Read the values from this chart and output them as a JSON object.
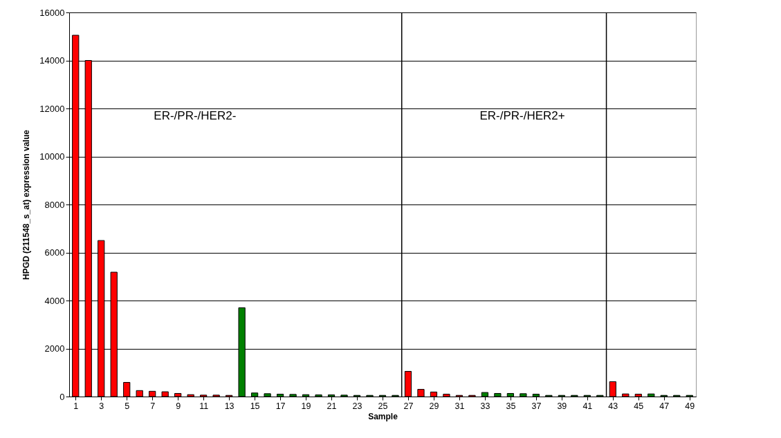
{
  "chart_data": {
    "type": "bar",
    "xlabel": "Sample",
    "ylabel": "HPGD (211548_s_at) expression value",
    "x": [
      1,
      2,
      3,
      4,
      5,
      6,
      7,
      8,
      9,
      10,
      11,
      12,
      13,
      14,
      15,
      16,
      17,
      18,
      19,
      20,
      21,
      22,
      23,
      24,
      25,
      26,
      27,
      28,
      29,
      30,
      31,
      32,
      33,
      34,
      35,
      36,
      37,
      38,
      39,
      40,
      41,
      42,
      43,
      44,
      45,
      46,
      47,
      48,
      49
    ],
    "values": [
      15050,
      14000,
      6500,
      5180,
      590,
      250,
      220,
      200,
      130,
      80,
      60,
      60,
      50,
      3700,
      150,
      120,
      100,
      90,
      80,
      70,
      70,
      60,
      50,
      50,
      50,
      50,
      1050,
      300,
      190,
      100,
      50,
      50,
      170,
      130,
      130,
      120,
      100,
      50,
      50,
      50,
      50,
      50,
      620,
      110,
      100,
      110,
      50,
      50,
      50
    ],
    "colors": [
      "#ff0000",
      "#ff0000",
      "#ff0000",
      "#ff0000",
      "#ff0000",
      "#ff0000",
      "#ff0000",
      "#ff0000",
      "#ff0000",
      "#ff0000",
      "#ff0000",
      "#ff0000",
      "#ff0000",
      "#008000",
      "#008000",
      "#008000",
      "#008000",
      "#008000",
      "#008000",
      "#008000",
      "#008000",
      "#008000",
      "#008000",
      "#008000",
      "#008000",
      "#008000",
      "#ff0000",
      "#ff0000",
      "#ff0000",
      "#ff0000",
      "#ff0000",
      "#ff0000",
      "#008000",
      "#008000",
      "#008000",
      "#008000",
      "#008000",
      "#008000",
      "#008000",
      "#008000",
      "#008000",
      "#008000",
      "#ff0000",
      "#ff0000",
      "#ff0000",
      "#008000",
      "#008000",
      "#008000",
      "#008000"
    ],
    "xlim": [
      0.5,
      49.5
    ],
    "xticks": [
      1,
      3,
      5,
      7,
      9,
      11,
      13,
      15,
      17,
      19,
      21,
      23,
      25,
      27,
      29,
      31,
      33,
      35,
      37,
      39,
      41,
      43,
      45,
      47,
      49
    ],
    "ylim": [
      0,
      16000
    ],
    "yticks": [
      0,
      2000,
      4000,
      6000,
      8000,
      10000,
      12000,
      14000,
      16000
    ],
    "grid": "y",
    "ref_lines": [
      {
        "axis": "x",
        "value": 26.5,
        "color": "#000000"
      },
      {
        "axis": "x",
        "value": 42.5,
        "color": "#000000"
      }
    ],
    "annotations": [
      "ER-/PR-/HER2-",
      "ER-/PR-/HER2+"
    ]
  }
}
